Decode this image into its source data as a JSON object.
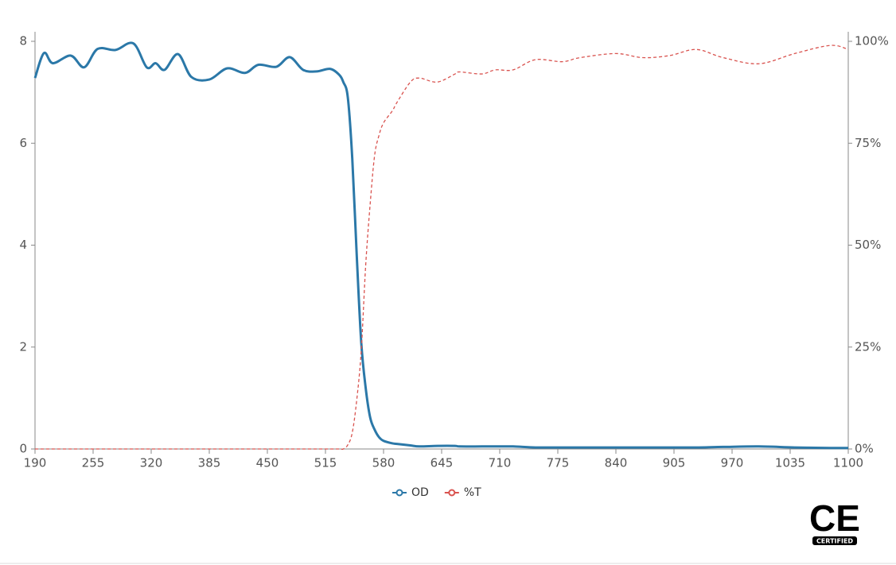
{
  "chart_data": {
    "type": "line",
    "x": [
      190,
      200,
      210,
      230,
      245,
      260,
      280,
      300,
      315,
      325,
      335,
      350,
      365,
      385,
      405,
      425,
      440,
      460,
      475,
      490,
      505,
      520,
      530,
      535,
      540,
      545,
      550,
      555,
      560,
      565,
      570,
      575,
      580,
      590,
      595,
      610,
      620,
      640,
      660,
      665,
      690,
      705,
      725,
      750,
      780,
      800,
      840,
      870,
      900,
      930,
      960,
      1000,
      1040,
      1080,
      1100
    ],
    "series": [
      {
        "name": "OD",
        "color": "#2b78a8",
        "dashed": false,
        "values": [
          7.28,
          7.77,
          7.57,
          7.72,
          7.49,
          7.85,
          7.83,
          7.96,
          7.49,
          7.57,
          7.44,
          7.75,
          7.3,
          7.25,
          7.47,
          7.38,
          7.54,
          7.5,
          7.69,
          7.44,
          7.41,
          7.46,
          7.35,
          7.2,
          6.9,
          5.7,
          3.8,
          2.1,
          1.2,
          0.62,
          0.38,
          0.23,
          0.16,
          0.11,
          0.1,
          0.07,
          0.05,
          0.06,
          0.06,
          0.05,
          0.05,
          0.05,
          0.05,
          0.03,
          0.03,
          0.03,
          0.03,
          0.03,
          0.03,
          0.03,
          0.04,
          0.05,
          0.03,
          0.02,
          0.02
        ]
      },
      {
        "name": "%T",
        "color": "#d9534f",
        "dashed": true,
        "axis": "y2",
        "values": [
          0,
          0,
          0,
          0,
          0,
          0,
          0,
          0,
          0,
          0,
          0,
          0,
          0,
          0,
          0,
          0,
          0,
          0,
          0,
          0,
          0,
          0,
          0,
          0,
          1,
          4,
          12,
          24,
          45,
          60,
          72,
          77,
          80,
          83,
          85,
          90,
          91,
          90,
          92,
          92.5,
          92,
          93,
          93,
          95.5,
          95,
          96,
          97,
          96,
          96.5,
          98,
          96,
          94.5,
          97,
          99,
          98
        ]
      }
    ],
    "xlim": [
      190,
      1100
    ],
    "xticks": [
      190,
      255,
      320,
      385,
      450,
      515,
      580,
      645,
      710,
      775,
      840,
      905,
      970,
      1035,
      1100
    ],
    "ylim": [
      0,
      8
    ],
    "yticks": [
      0,
      2,
      4,
      6,
      8
    ],
    "y2lim": [
      0,
      100
    ],
    "y2ticks": [
      {
        "value": 0,
        "label": "0%"
      },
      {
        "value": 25,
        "label": "25%"
      },
      {
        "value": 50,
        "label": "50%"
      },
      {
        "value": 75,
        "label": "75%"
      },
      {
        "value": 100,
        "label": "100%"
      }
    ],
    "legend": "bottom"
  },
  "badge": {
    "mark": "CE",
    "label": "CERTIFIED"
  }
}
